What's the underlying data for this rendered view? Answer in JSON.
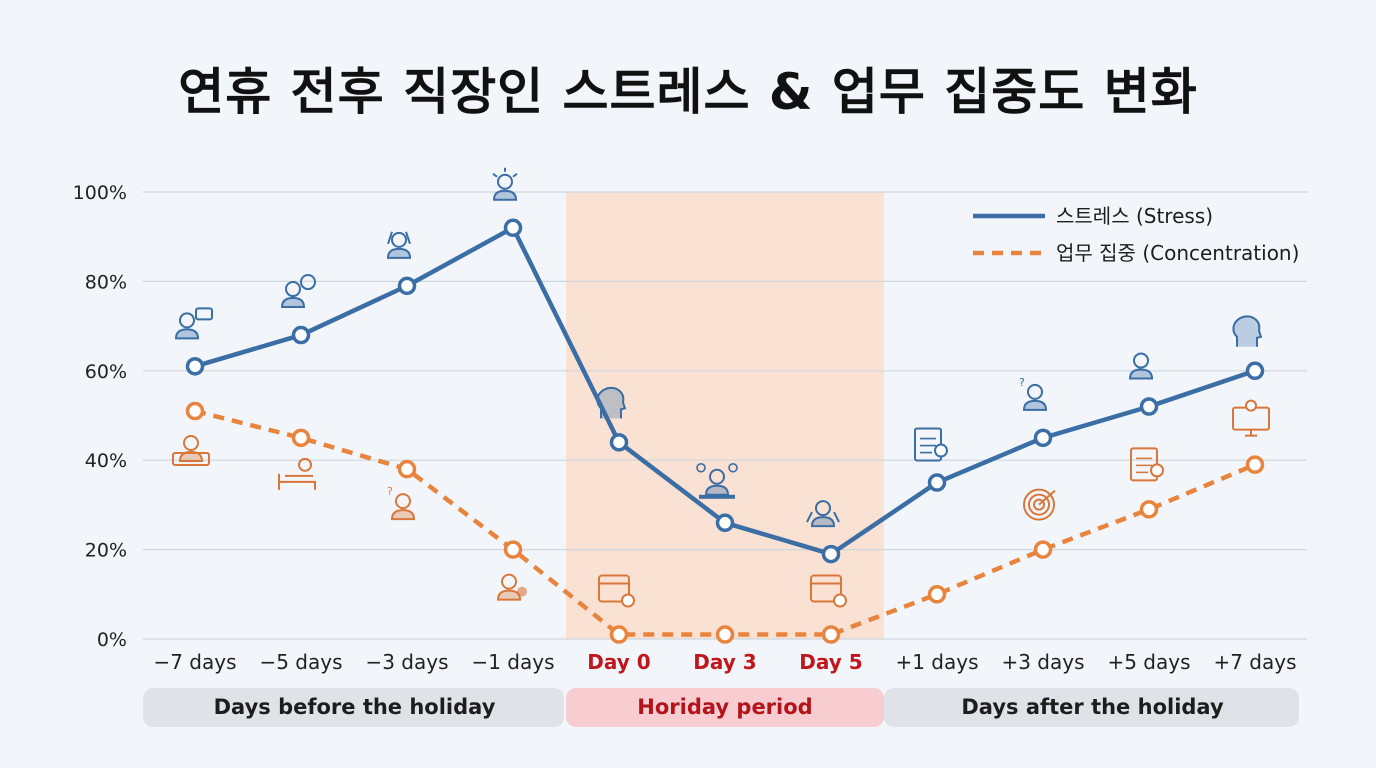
{
  "chart_data": {
    "type": "line",
    "title": "연휴 전후 직장인 스트레스 & 업무 집중도 변화",
    "categories": [
      "−7 days",
      "−5 days",
      "−3 days",
      "−1 days",
      "Day 0",
      "Day 3",
      "Day 5",
      "+1 days",
      "+3 days",
      "+5 days",
      "+7 days"
    ],
    "holiday_categories": [
      "Day 0",
      "Day 3",
      "Day 5"
    ],
    "y_ticks": [
      "0%",
      "20%",
      "40%",
      "60%",
      "80%",
      "100%"
    ],
    "ylim": [
      0,
      100
    ],
    "grid": true,
    "legend_position": "top-right",
    "series": [
      {
        "name": "스트레스  (Stress)",
        "color": "#3a6ea5",
        "style": "solid",
        "values": [
          61,
          68,
          79,
          92,
          44,
          26,
          19,
          35,
          45,
          52,
          60
        ]
      },
      {
        "name": "업무 집중 (Concentration)",
        "color": "#e8843e",
        "style": "dashed",
        "values": [
          51,
          45,
          38,
          20,
          1,
          1,
          1,
          10,
          20,
          29,
          39
        ]
      }
    ],
    "periods": [
      {
        "label": "Days before the holiday",
        "from": 0,
        "to": 3,
        "kind": "normal"
      },
      {
        "label": "Horiday period",
        "from": 4,
        "to": 6,
        "kind": "holiday"
      },
      {
        "label": "Days after the holiday",
        "from": 7,
        "to": 10,
        "kind": "normal"
      }
    ],
    "icons": {
      "stress": [
        "person-chat-icon",
        "person-question-icon",
        "person-head-holding-icon",
        "person-stressed-icon",
        "brain-head-icon",
        "person-desk-talk-icon",
        "person-meditate-icon",
        "clipboard-gear-icon",
        "person-confused-icon",
        "person-icon",
        "brain-head-icon"
      ],
      "concentration": [
        "person-laptop-icon",
        "bed-clock-icon",
        "person-confused-icon",
        "person-tired-icon",
        "calendar-clock-icon",
        null,
        "calendar-clock-icon",
        null,
        "target-icon",
        "clipboard-check-icon",
        "monitor-gear-icon"
      ]
    }
  },
  "colors": {
    "holiday_band": "#f9e1d3",
    "holiday_pill": "#f7cdd1",
    "normal_pill": "#dfe3e8",
    "stress_icon": "#3a6ea5",
    "concentration_icon": "#d9773a"
  }
}
